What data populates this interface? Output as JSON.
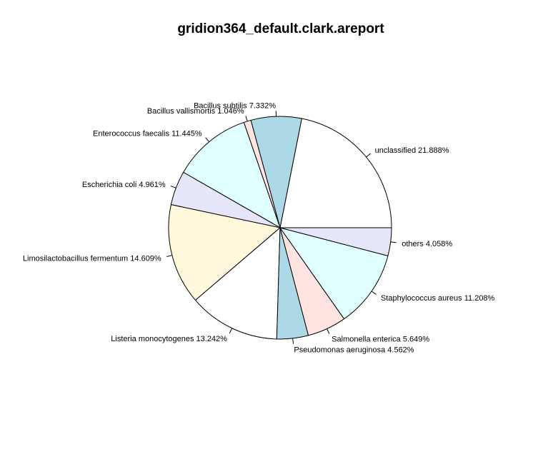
{
  "chart_data": {
    "type": "pie",
    "title": "gridion364_default.clark.areport",
    "start_angle_deg": 0,
    "direction": "counterclockwise",
    "slices": [
      {
        "label": "unclassified 21.888%",
        "value": 21.888,
        "color": "#ffffff"
      },
      {
        "label": "Bacillus subtilis 7.332%",
        "value": 7.332,
        "color": "#add8e6"
      },
      {
        "label": "Bacillus vallismortis 1.046%",
        "value": 1.046,
        "color": "#ffe4e1"
      },
      {
        "label": "Enterococcus faecalis 11.445%",
        "value": 11.445,
        "color": "#e0ffff"
      },
      {
        "label": "Escherichia coli 4.961%",
        "value": 4.961,
        "color": "#e6e6fa"
      },
      {
        "label": "Limosilactobacillus fermentum 14.609%",
        "value": 14.609,
        "color": "#fff8dc"
      },
      {
        "label": "Listeria monocytogenes 13.242%",
        "value": 13.242,
        "color": "#ffffff"
      },
      {
        "label": "Pseudomonas aeruginosa 4.562%",
        "value": 4.562,
        "color": "#add8e6"
      },
      {
        "label": "Salmonella enterica 5.649%",
        "value": 5.649,
        "color": "#ffe4e1"
      },
      {
        "label": "Staphylococcus aureus 11.208%",
        "value": 11.208,
        "color": "#e0ffff"
      },
      {
        "label": "others 4.058%",
        "value": 4.058,
        "color": "#e6e6fa"
      }
    ]
  }
}
